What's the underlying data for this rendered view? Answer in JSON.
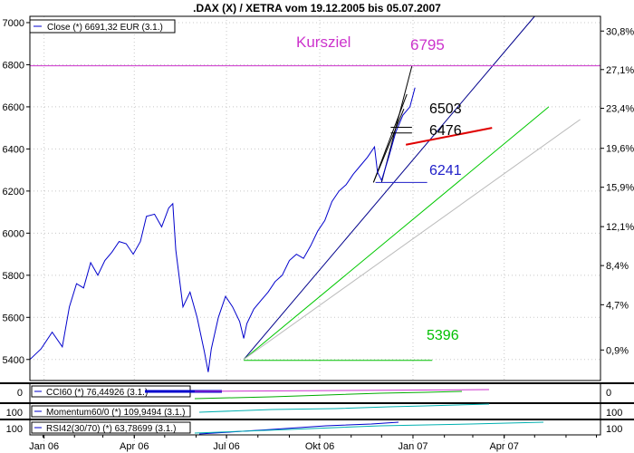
{
  "chart_data": {
    "type": "line",
    "title": ".DAX (X) / XETRA vom 19.12.2005 bis 05.07.2007",
    "legend": {
      "main": "Close (*) 6691,32 EUR (3.1.)",
      "cci": "CCI60 (*) 76,44926 (3.1.)",
      "momentum": "Momentum60/0 (*) 109,9494 (3.1.)",
      "rsi": "RSI42(30/70) (*) 63,78699 (3.1.)"
    },
    "x_ticks": [
      "Jan 06",
      "Apr 06",
      "Jul 06",
      "Okt 06",
      "Jan 07",
      "Apr 07"
    ],
    "y_left": {
      "ylim": [
        5300,
        7030
      ],
      "ticks": [
        5400,
        5600,
        5800,
        6000,
        6200,
        6400,
        6600,
        6800,
        7000
      ]
    },
    "y_right": {
      "ticks": [
        "30,8%",
        "27,1%",
        "23,4%",
        "19,6%",
        "15,9%",
        "12,1%",
        "8,4%",
        "4,7%",
        "0,9%"
      ],
      "values": [
        6960,
        6777,
        6593,
        6403,
        6218,
        6031,
        5846,
        5660,
        5445
      ]
    },
    "series": [
      {
        "name": "Close",
        "x": [
          "2005-12-19",
          "2005-12-30",
          "2006-01-10",
          "2006-01-20",
          "2006-01-27",
          "2006-02-03",
          "2006-02-10",
          "2006-02-17",
          "2006-02-24",
          "2006-03-03",
          "2006-03-10",
          "2006-03-17",
          "2006-03-24",
          "2006-03-31",
          "2006-04-07",
          "2006-04-13",
          "2006-04-21",
          "2006-04-28",
          "2006-05-05",
          "2006-05-09",
          "2006-05-12",
          "2006-05-19",
          "2006-05-26",
          "2006-06-02",
          "2006-06-09",
          "2006-06-13",
          "2006-06-16",
          "2006-06-23",
          "2006-06-30",
          "2006-07-07",
          "2006-07-14",
          "2006-07-18",
          "2006-07-21",
          "2006-07-28",
          "2006-08-04",
          "2006-08-11",
          "2006-08-18",
          "2006-08-25",
          "2006-09-01",
          "2006-09-08",
          "2006-09-15",
          "2006-09-22",
          "2006-09-29",
          "2006-10-06",
          "2006-10-13",
          "2006-10-20",
          "2006-10-27",
          "2006-11-03",
          "2006-11-10",
          "2006-11-17",
          "2006-11-24",
          "2006-11-27",
          "2006-12-01",
          "2006-12-08",
          "2006-12-15",
          "2006-12-22",
          "2006-12-29",
          "2007-01-03"
        ],
        "values": [
          5400,
          5450,
          5530,
          5460,
          5650,
          5760,
          5740,
          5860,
          5800,
          5870,
          5910,
          5960,
          5950,
          5900,
          5960,
          6080,
          6090,
          6030,
          6120,
          6140,
          5920,
          5650,
          5720,
          5600,
          5440,
          5340,
          5450,
          5600,
          5700,
          5650,
          5580,
          5500,
          5570,
          5640,
          5680,
          5720,
          5770,
          5800,
          5870,
          5900,
          5880,
          5940,
          6010,
          6060,
          6150,
          6200,
          6230,
          6280,
          6320,
          6360,
          6410,
          6290,
          6250,
          6360,
          6480,
          6560,
          6600,
          6691
        ]
      }
    ],
    "trendlines": [
      {
        "label": "6795",
        "x": [
          "2006-12-01",
          "2006-12-31"
        ],
        "values": [
          6241,
          6795
        ],
        "color": "#000000"
      },
      {
        "x": [
          "2006-07-18",
          "2007-05-01"
        ],
        "values": [
          5400,
          7030
        ],
        "color": "#00008b"
      },
      {
        "x": [
          "2006-07-18",
          "2007-05-15"
        ],
        "values": [
          5400,
          6600
        ],
        "color": "#00c800"
      },
      {
        "x": [
          "2006-07-18",
          "2007-06-15"
        ],
        "values": [
          5400,
          6540
        ],
        "color": "#bbbbbb"
      },
      {
        "x": [
          "2006-11-23",
          "2006-12-26"
        ],
        "values": [
          6241,
          6660
        ],
        "color": "#000000"
      },
      {
        "x": [
          "2006-11-23",
          "2006-12-23"
        ],
        "values": [
          6241,
          6590
        ],
        "color": "#000000"
      }
    ],
    "hlines": [
      {
        "value": 6795,
        "label": "Kursziel",
        "color": "#cc33cc"
      },
      {
        "value": 6241,
        "label": "6241",
        "x": [
          "2006-11-25",
          "2007-01-15"
        ],
        "color": "#1e1ec8"
      },
      {
        "value": 6503,
        "label": "6503",
        "x": [
          "2006-12-10",
          "2006-12-31"
        ],
        "color": "#000000"
      },
      {
        "value": 6476,
        "label": "6476",
        "x": [
          "2006-12-10",
          "2006-12-31"
        ],
        "color": "#000000"
      },
      {
        "value": 5396,
        "label": "5396",
        "x": [
          "2006-07-18",
          "2007-01-20"
        ],
        "color": "#00c000"
      }
    ],
    "red_line": {
      "x": [
        "2006-12-25",
        "2007-03-20"
      ],
      "values": [
        6420,
        6500
      ],
      "color": "#e00000"
    },
    "indicator_ticks": {
      "cci": "0",
      "momentum": "100",
      "rsi": "100"
    },
    "colors": {
      "price": "#0000cc",
      "accent": "#cc33cc",
      "grid": "#c8c8c8",
      "green": "#00c000"
    }
  }
}
